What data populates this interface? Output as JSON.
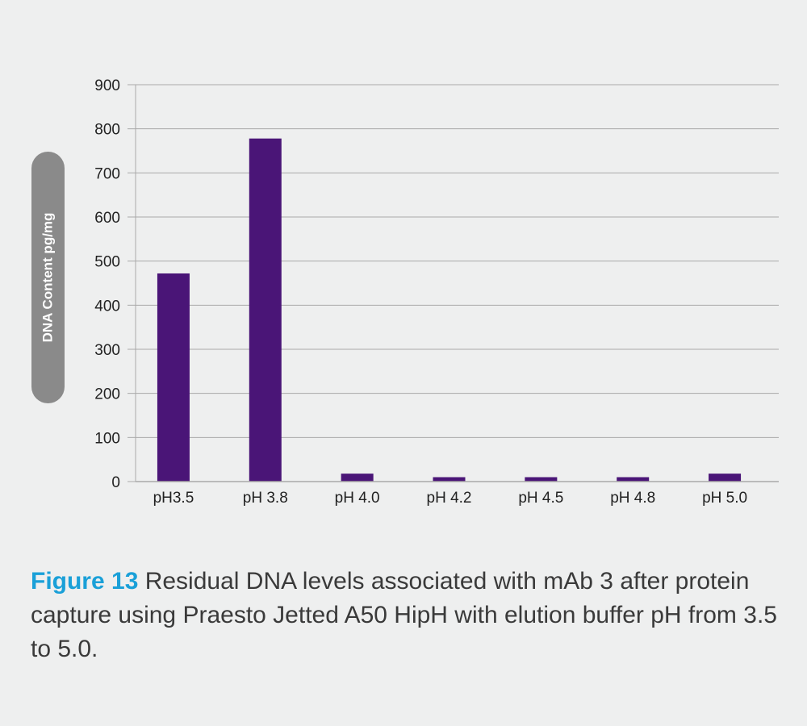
{
  "chart_data": {
    "type": "bar",
    "categories": [
      "pH3.5",
      "pH 3.8",
      "pH 4.0",
      "pH 4.2",
      "pH 4.5",
      "pH 4.8",
      "pH 5.0"
    ],
    "values": [
      472,
      778,
      18,
      10,
      10,
      10,
      18
    ],
    "ylabel": "DNA Content pg/mg",
    "xlabel": "",
    "ylim": [
      0,
      900
    ],
    "yticks": [
      0,
      100,
      200,
      300,
      400,
      500,
      600,
      700,
      800,
      900
    ],
    "grid": true,
    "bar_color": "#4a1577"
  },
  "caption": {
    "label": "Figure 13",
    "text": " Residual DNA levels associated with mAb 3 after protein capture using Praesto Jetted A50 HipH with elution buffer pH from 3.5 to 5.0."
  },
  "colors": {
    "background": "#eeefef",
    "caption_label": "#1aa0d8",
    "axis_pill": "#8a8a8a"
  }
}
